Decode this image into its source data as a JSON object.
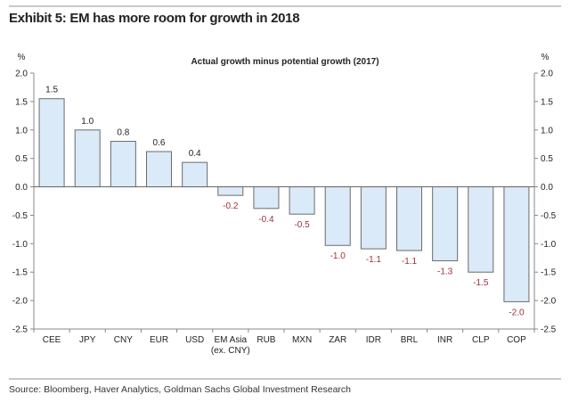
{
  "exhibit_title": "Exhibit 5: EM has more room for growth in 2018",
  "source": "Source: Bloomberg, Haver Analytics, Goldman Sachs Global Investment Research",
  "chart_data": {
    "type": "bar",
    "title": "Actual growth minus potential growth (2017)",
    "ylabel_left": "%",
    "ylabel_right": "%",
    "ylim": [
      -2.5,
      2.0
    ],
    "yticks": [
      "2.0",
      "1.5",
      "1.0",
      "0.5",
      "0.0",
      "-0.5",
      "-1.0",
      "-1.5",
      "-2.0",
      "-2.5"
    ],
    "categories": [
      "CEE",
      "JPY",
      "CNY",
      "EUR",
      "USD",
      "EM Asia\n(ex. CNY)",
      "RUB",
      "MXN",
      "ZAR",
      "IDR",
      "BRL",
      "INR",
      "CLP",
      "COP"
    ],
    "values": [
      1.55,
      1.0,
      0.8,
      0.62,
      0.43,
      -0.15,
      -0.38,
      -0.48,
      -1.03,
      -1.09,
      -1.12,
      -1.3,
      -1.5,
      -2.02
    ],
    "data_labels": [
      "1.5",
      "1.0",
      "0.8",
      "0.6",
      "0.4",
      "-0.2",
      "-0.4",
      "-0.5",
      "-1.0",
      "-1.1",
      "-1.1",
      "-1.3",
      "-1.5",
      "-2.0"
    ],
    "grid": false,
    "legend": "none",
    "colors": {
      "bar_fill": "#dbeaf9",
      "bar_stroke": "#6b6b6b",
      "positive_label": "#222222",
      "negative_label": "#a0303a"
    }
  }
}
